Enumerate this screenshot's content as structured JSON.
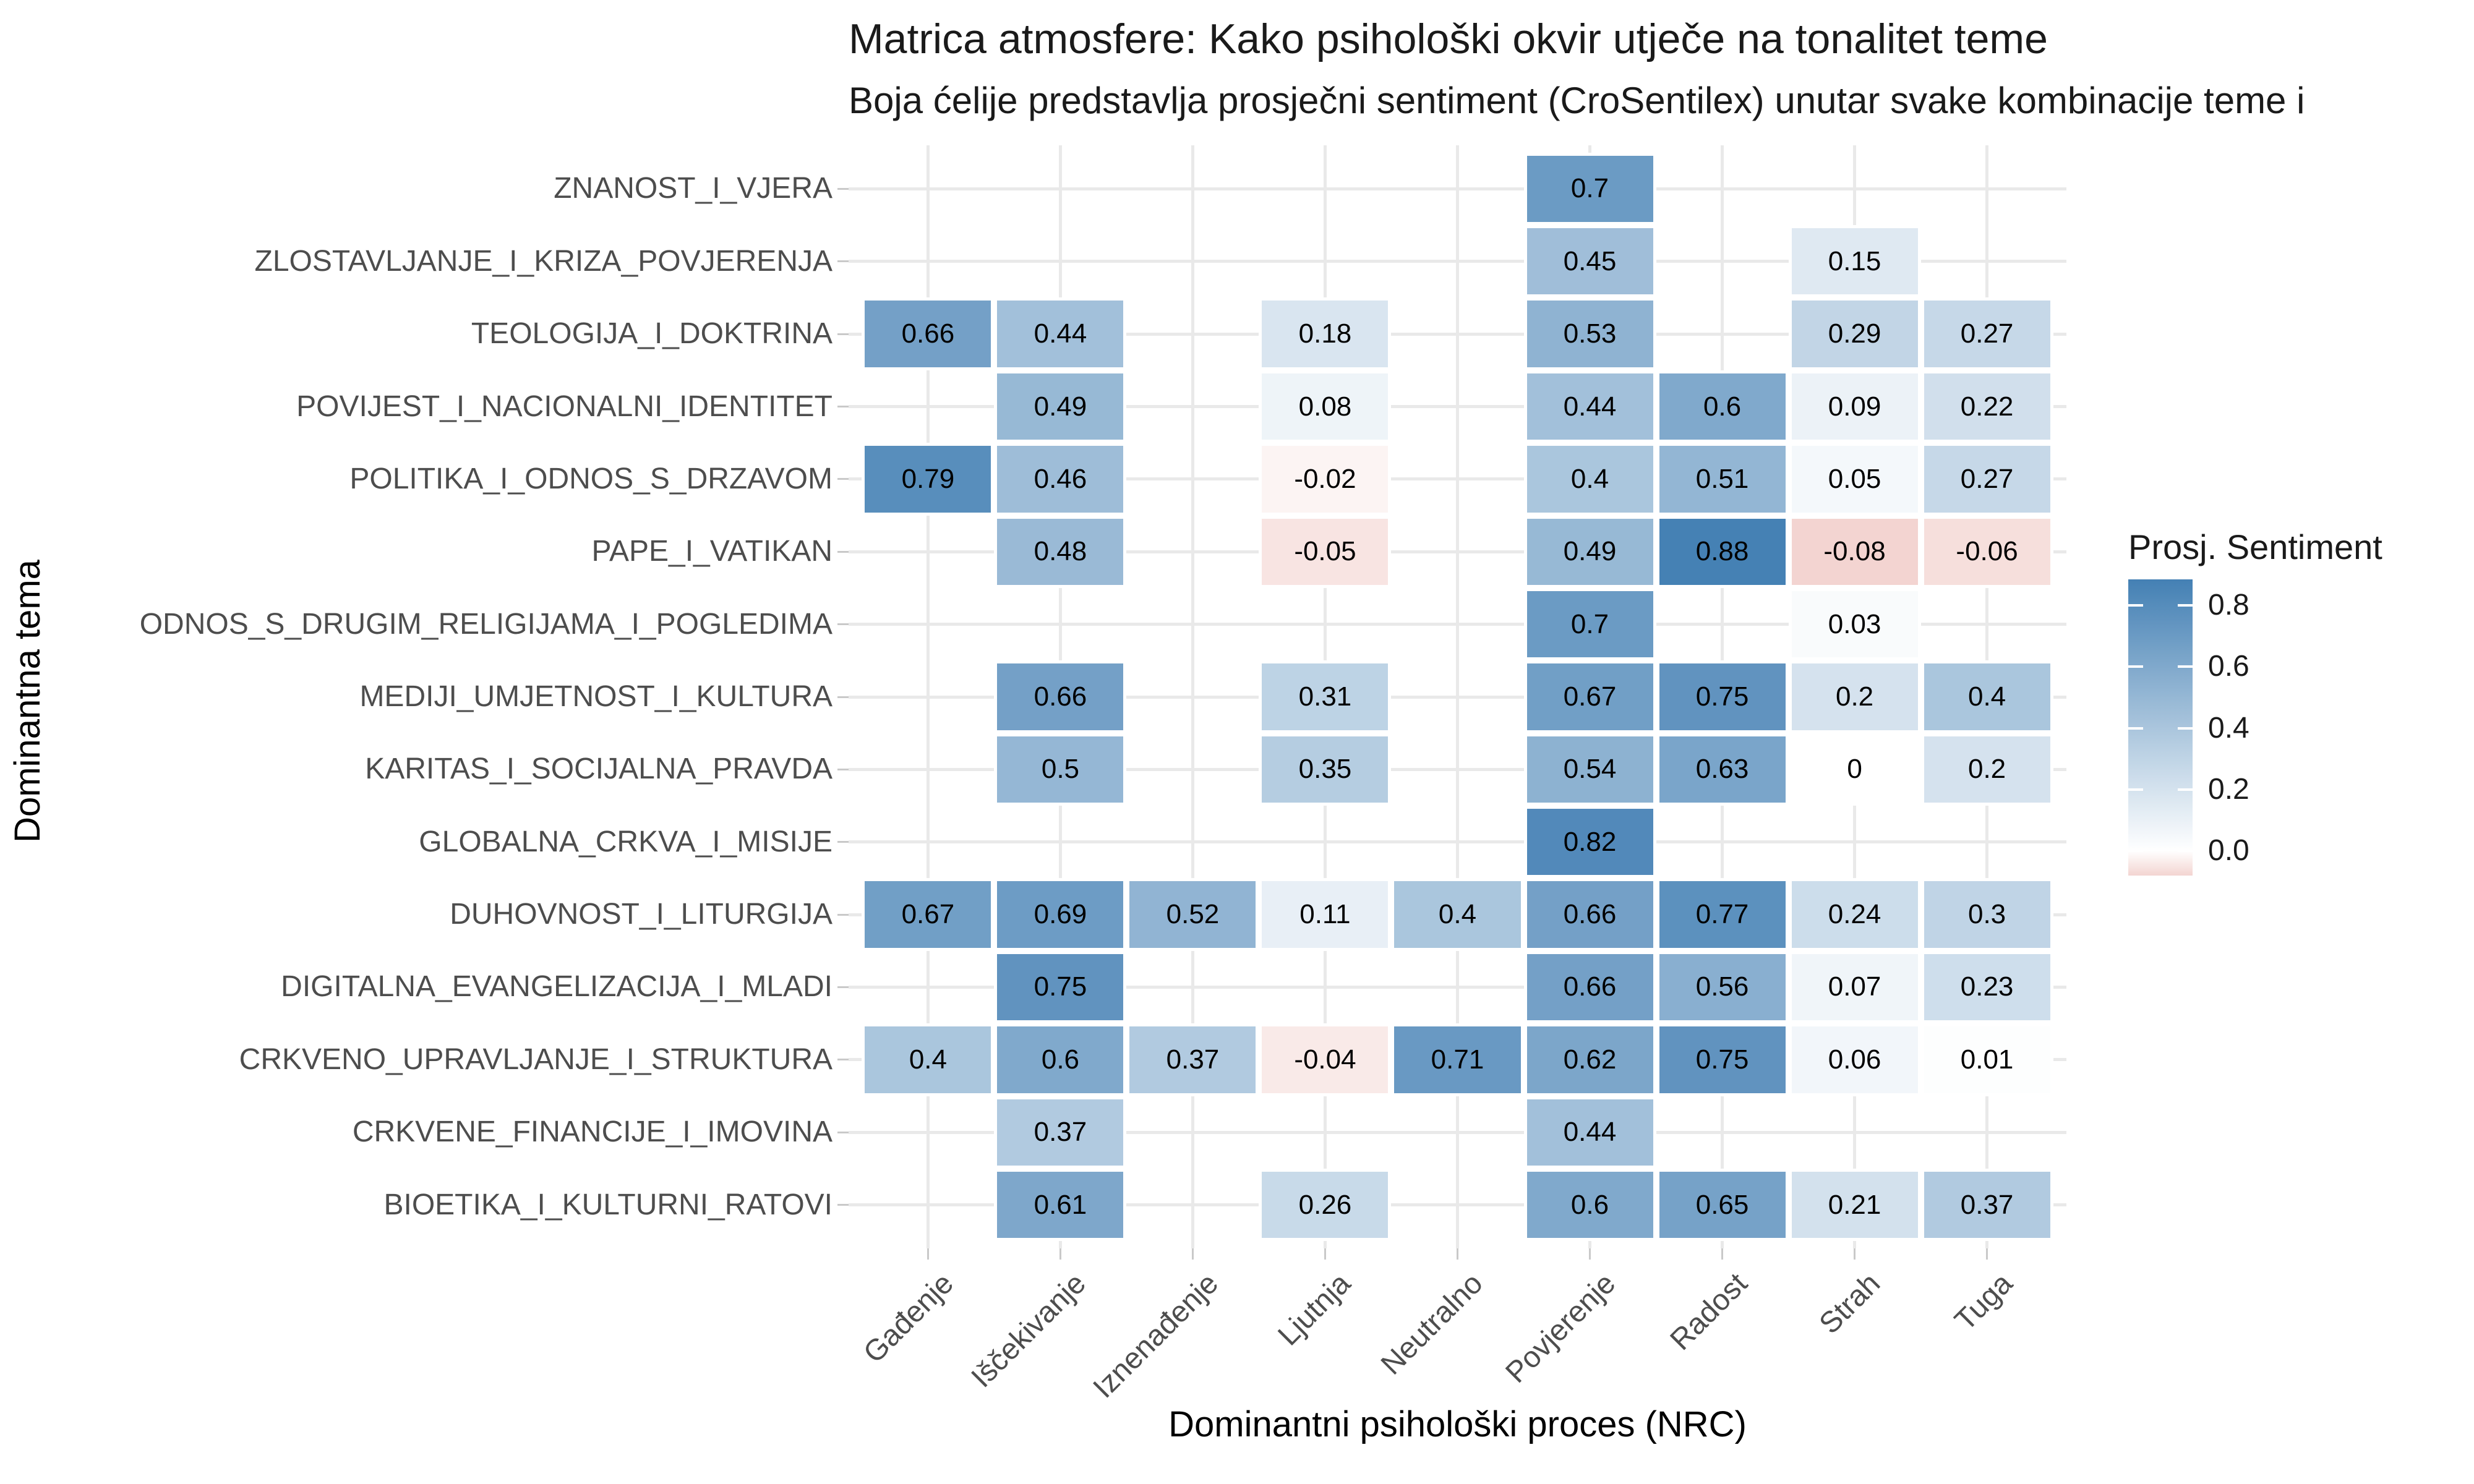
{
  "title": "Matrica atmosfere: Kako psihološki okvir utječe na tonalitet teme",
  "subtitle": "Boja ćelije predstavlja prosječni sentiment (CroSentilex) unutar svake kombinacije teme i",
  "chart_data": {
    "type": "heatmap",
    "xlabel": "Dominantni psihološki proces (NRC)",
    "ylabel": "Dominantna tema",
    "x_categories": [
      "Gađenje",
      "Iščekivanje",
      "Iznenađenje",
      "Ljutnja",
      "Neutralno",
      "Povjerenje",
      "Radost",
      "Strah",
      "Tuga"
    ],
    "y_categories": [
      "ZNANOST_I_VJERA",
      "ZLOSTAVLJANJE_I_KRIZA_POVJERENJA",
      "TEOLOGIJA_I_DOKTRINA",
      "POVIJEST_I_NACIONALNI_IDENTITET",
      "POLITIKA_I_ODNOS_S_DRZAVOM",
      "PAPE_I_VATIKAN",
      "ODNOS_S_DRUGIM_RELIGIJAMA_I_POGLEDIMA",
      "MEDIJI_UMJETNOST_I_KULTURA",
      "KARITAS_I_SOCIJALNA_PRAVDA",
      "GLOBALNA_CRKVA_I_MISIJE",
      "DUHOVNOST_I_LITURGIJA",
      "DIGITALNA_EVANGELIZACIJA_I_MLADI",
      "CRKVENO_UPRAVLJANJE_I_STRUKTURA",
      "CRKVENE_FINANCIJE_I_IMOVINA",
      "BIOETIKA_I_KULTURNI_RATOVI"
    ],
    "values": [
      [
        null,
        null,
        null,
        null,
        null,
        0.7,
        null,
        null,
        null
      ],
      [
        null,
        null,
        null,
        null,
        null,
        0.45,
        null,
        0.15,
        null
      ],
      [
        0.66,
        0.44,
        null,
        0.18,
        null,
        0.53,
        null,
        0.29,
        0.27
      ],
      [
        null,
        0.49,
        null,
        0.08,
        null,
        0.44,
        0.6,
        0.09,
        0.22
      ],
      [
        0.79,
        0.46,
        null,
        -0.02,
        null,
        0.4,
        0.51,
        0.05,
        0.27
      ],
      [
        null,
        0.48,
        null,
        -0.05,
        null,
        0.49,
        0.88,
        -0.08,
        -0.06
      ],
      [
        null,
        null,
        null,
        null,
        null,
        0.7,
        null,
        0.03,
        null
      ],
      [
        null,
        0.66,
        null,
        0.31,
        null,
        0.67,
        0.75,
        0.2,
        0.4
      ],
      [
        null,
        0.5,
        null,
        0.35,
        null,
        0.54,
        0.63,
        0,
        0.2
      ],
      [
        null,
        null,
        null,
        null,
        null,
        0.82,
        null,
        null,
        null
      ],
      [
        0.67,
        0.69,
        0.52,
        0.11,
        0.4,
        0.66,
        0.77,
        0.24,
        0.3
      ],
      [
        null,
        0.75,
        null,
        null,
        null,
        0.66,
        0.56,
        0.07,
        0.23
      ],
      [
        0.4,
        0.6,
        0.37,
        -0.04,
        0.71,
        0.62,
        0.75,
        0.06,
        0.01
      ],
      [
        null,
        0.37,
        null,
        null,
        null,
        0.44,
        null,
        null,
        null
      ],
      [
        null,
        0.61,
        null,
        0.26,
        null,
        0.6,
        0.65,
        0.21,
        0.37
      ]
    ],
    "legend": {
      "title": "Prosj. Sentiment",
      "tick_labels": [
        "0.8",
        "0.6",
        "0.4",
        "0.2",
        "0.0"
      ],
      "tick_values": [
        0.8,
        0.6,
        0.4,
        0.2,
        0.0
      ],
      "top_value": 0.885,
      "bottom_value": -0.08,
      "position": "right"
    },
    "color_scale": {
      "high": "#4480B4",
      "mid": "#FFFFFF",
      "low": "#CB4335",
      "pos_max": 0.885,
      "neg_ref": 0.35
    },
    "grid": true,
    "colors": {
      "gridline": "#E9E9E9",
      "axis_text": "#4D4D4D",
      "tick_mark": "#C9C9C9",
      "cell_text": "#000000",
      "cell_border": "#FFFFFF"
    }
  }
}
